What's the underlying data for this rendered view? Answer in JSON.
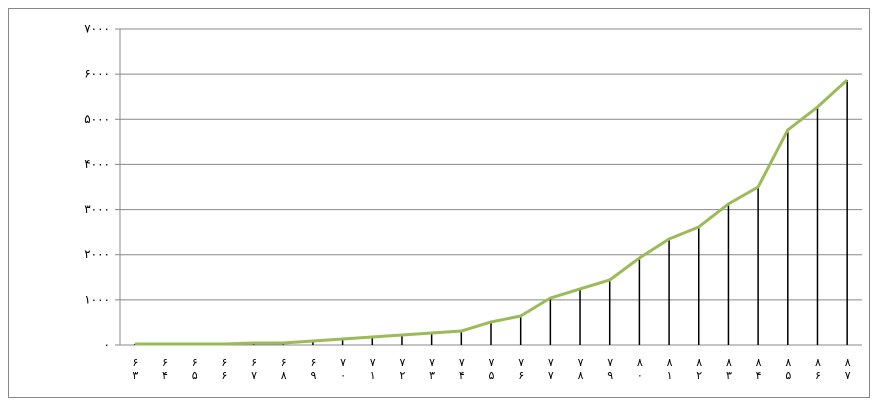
{
  "chart_data": {
    "type": "line",
    "categories": [
      "۶۳",
      "۶۴",
      "۶۵",
      "۶۶",
      "۶۷",
      "۶۸",
      "۶۹",
      "۷۰",
      "۷۱",
      "۷۲",
      "۷۳",
      "۷۴",
      "۷۵",
      "۷۶",
      "۷۷",
      "۷۸",
      "۷۹",
      "۸۰",
      "۸۱",
      "۸۲",
      "۸۳",
      "۸۴",
      "۸۵",
      "۸۶",
      "۸۷"
    ],
    "values": [
      22,
      22,
      22,
      22,
      44,
      44,
      89,
      133,
      177,
      222,
      266,
      310,
      510,
      642,
      1041,
      1241,
      1440,
      1927,
      2348,
      2614,
      3124,
      3500,
      4763,
      5272,
      5871
    ],
    "color": "#9bbb59",
    "drop_lines": true,
    "ylim": [
      0,
      7000
    ],
    "yticks": [
      {
        "value": 0,
        "label": "۰"
      },
      {
        "value": 1000,
        "label": "۱۰۰۰"
      },
      {
        "value": 2000,
        "label": "۲۰۰۰"
      },
      {
        "value": 3000,
        "label": "۳۰۰۰"
      },
      {
        "value": 4000,
        "label": "۴۰۰۰"
      },
      {
        "value": 5000,
        "label": "۵۰۰۰"
      },
      {
        "value": 6000,
        "label": "۶۰۰۰"
      },
      {
        "value": 7000,
        "label": "۷۰۰۰"
      }
    ],
    "grid": true
  }
}
